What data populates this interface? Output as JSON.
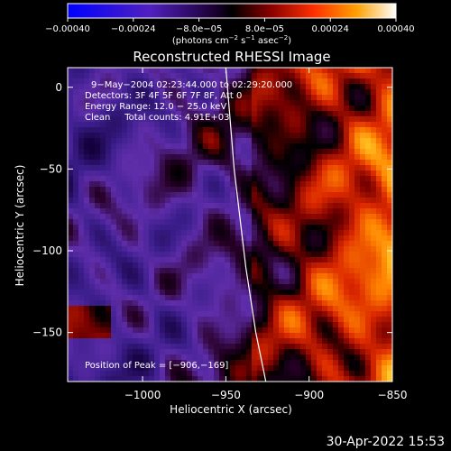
{
  "chart_data": {
    "type": "heatmap",
    "title": "Reconstructed RHESSI Image",
    "xlabel": "Heliocentric X (arcsec)",
    "ylabel": "Heliocentric Y (arcsec)",
    "xlim": [
      -1045,
      -850
    ],
    "ylim": [
      -180,
      12
    ],
    "x_ticks": [
      -1000,
      -950,
      -900,
      -850
    ],
    "x_tick_labels": [
      "−1000",
      "−950",
      "−900",
      "−850"
    ],
    "y_ticks": [
      0,
      -50,
      -100,
      -150
    ],
    "y_tick_labels": [
      "0",
      "−50",
      "−100",
      "−150"
    ],
    "colorbar": {
      "range": [
        -0.0004,
        0.0004
      ],
      "ticks": [
        -0.0004,
        -0.00024,
        -8e-05,
        8e-05,
        0.00024,
        0.0004
      ],
      "tick_labels": [
        "−0.00040",
        "−0.00024",
        "−8.0e−05",
        "8.0e−05",
        "0.00024",
        "0.00040"
      ],
      "units_parts": [
        "(photons cm",
        "−2",
        " s",
        "−1",
        " asec",
        "−2",
        ")"
      ]
    },
    "annotations": [
      "9−May−2004 02:23:44.000 to 02:29:20.000",
      "Detectors: 3F 4F 5F 6F 7F 8F, Att 0",
      "Energy Range: 12.0 − 25.0 keV",
      "Clean     Total counts: 4.91E+03"
    ],
    "peak_label": "Position of Peak = [−906,−169]",
    "peak": [
      -906,
      -169
    ],
    "limb_curve": [
      [
        -950,
        12
      ],
      [
        -945,
        -50
      ],
      [
        -938,
        -110
      ],
      [
        -932,
        -150
      ],
      [
        -926,
        -180
      ]
    ],
    "grid": false,
    "timestamp": "30-Apr-2022 15:53",
    "colors": {
      "background": "#000000",
      "text": "#ffffff"
    }
  }
}
